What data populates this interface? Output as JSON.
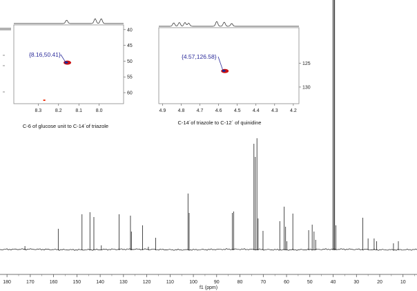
{
  "chart_data": [
    {
      "type": "line",
      "xlabel": "f1 (ppm)",
      "xlim": [
        183,
        4
      ],
      "x_reversed": true,
      "xticks": [
        180,
        170,
        160,
        150,
        140,
        130,
        120,
        110,
        100,
        90,
        80,
        70,
        60,
        50,
        40,
        30,
        20,
        10
      ],
      "peaks": [
        {
          "x": 172.3,
          "h": 0.05
        },
        {
          "x": 158.0,
          "h": 0.3
        },
        {
          "x": 147.8,
          "h": 0.51
        },
        {
          "x": 144.4,
          "h": 0.54
        },
        {
          "x": 142.7,
          "h": 0.47
        },
        {
          "x": 139.5,
          "h": 0.06
        },
        {
          "x": 131.9,
          "h": 0.51
        },
        {
          "x": 127.0,
          "h": 0.49
        },
        {
          "x": 126.6,
          "h": 0.26
        },
        {
          "x": 121.8,
          "h": 0.35
        },
        {
          "x": 119.3,
          "h": 0.04
        },
        {
          "x": 116.2,
          "h": 0.17
        },
        {
          "x": 102.3,
          "h": 0.81
        },
        {
          "x": 101.8,
          "h": 0.53
        },
        {
          "x": 83.3,
          "h": 0.53
        },
        {
          "x": 82.7,
          "h": 0.55
        },
        {
          "x": 74.0,
          "h": 1.53
        },
        {
          "x": 73.4,
          "h": 1.34
        },
        {
          "x": 72.7,
          "h": 1.61
        },
        {
          "x": 72.2,
          "h": 0.45
        },
        {
          "x": 70.1,
          "h": 0.27
        },
        {
          "x": 62.9,
          "h": 0.41
        },
        {
          "x": 61.0,
          "h": 0.62
        },
        {
          "x": 60.4,
          "h": 0.33
        },
        {
          "x": 59.9,
          "h": 0.12
        },
        {
          "x": 57.3,
          "h": 0.52
        },
        {
          "x": 50.5,
          "h": 0.28
        },
        {
          "x": 49.0,
          "h": 0.36
        },
        {
          "x": 48.2,
          "h": 0.26
        },
        {
          "x": 47.5,
          "h": 0.14
        },
        {
          "x": 40.0,
          "h": 3.8
        },
        {
          "x": 39.4,
          "h": 3.8
        },
        {
          "x": 38.8,
          "h": 0.35
        },
        {
          "x": 27.3,
          "h": 0.46
        },
        {
          "x": 25.0,
          "h": 0.16
        },
        {
          "x": 22.4,
          "h": 0.16
        },
        {
          "x": 21.3,
          "h": 0.12
        },
        {
          "x": 14.1,
          "h": 0.09
        },
        {
          "x": 12.0,
          "h": 0.12
        }
      ]
    },
    {
      "type": "scatter",
      "title": "C-6 of glucose unit to C-14´of triazole",
      "xlim": [
        8.42,
        7.88
      ],
      "ylim": [
        38.5,
        63.5
      ],
      "xticks": [
        "8.3",
        "8.2",
        "8.1",
        "8.0"
      ],
      "yticks": [
        "40",
        "45",
        "50",
        "55",
        "60"
      ],
      "annotation": "{8.16,50.41}",
      "cross_peaks": [
        {
          "x": 8.16,
          "y": 50.41,
          "color": "#cc1111"
        },
        {
          "x": 8.27,
          "y": 62.4,
          "color": "#ee3311"
        }
      ],
      "top_projection_peaks": [
        {
          "x": 8.16,
          "h": 0.5
        },
        {
          "x": 8.02,
          "h": 0.7
        },
        {
          "x": 7.99,
          "h": 0.7
        }
      ]
    },
    {
      "type": "scatter",
      "title": "C-14´of triazole to C-12´ of quinidine",
      "xlim": [
        4.92,
        4.17
      ],
      "ylim": [
        117.5,
        133.5
      ],
      "xticks": [
        "4.9",
        "4.8",
        "4.7",
        "4.6",
        "4.5",
        "4.4",
        "4.3",
        "4.2"
      ],
      "yticks": [
        "125",
        "130"
      ],
      "annotation": "{4.57,126.58}",
      "cross_peaks": [
        {
          "x": 4.57,
          "y": 126.58,
          "color": "#cc1111"
        }
      ],
      "top_projection_peaks": [
        {
          "x": 4.84,
          "h": 0.5
        },
        {
          "x": 4.81,
          "h": 0.55
        },
        {
          "x": 4.78,
          "h": 0.55
        },
        {
          "x": 4.76,
          "h": 0.45
        },
        {
          "x": 4.61,
          "h": 0.7
        },
        {
          "x": 4.57,
          "h": 0.6
        },
        {
          "x": 4.53,
          "h": 0.4
        }
      ]
    }
  ]
}
